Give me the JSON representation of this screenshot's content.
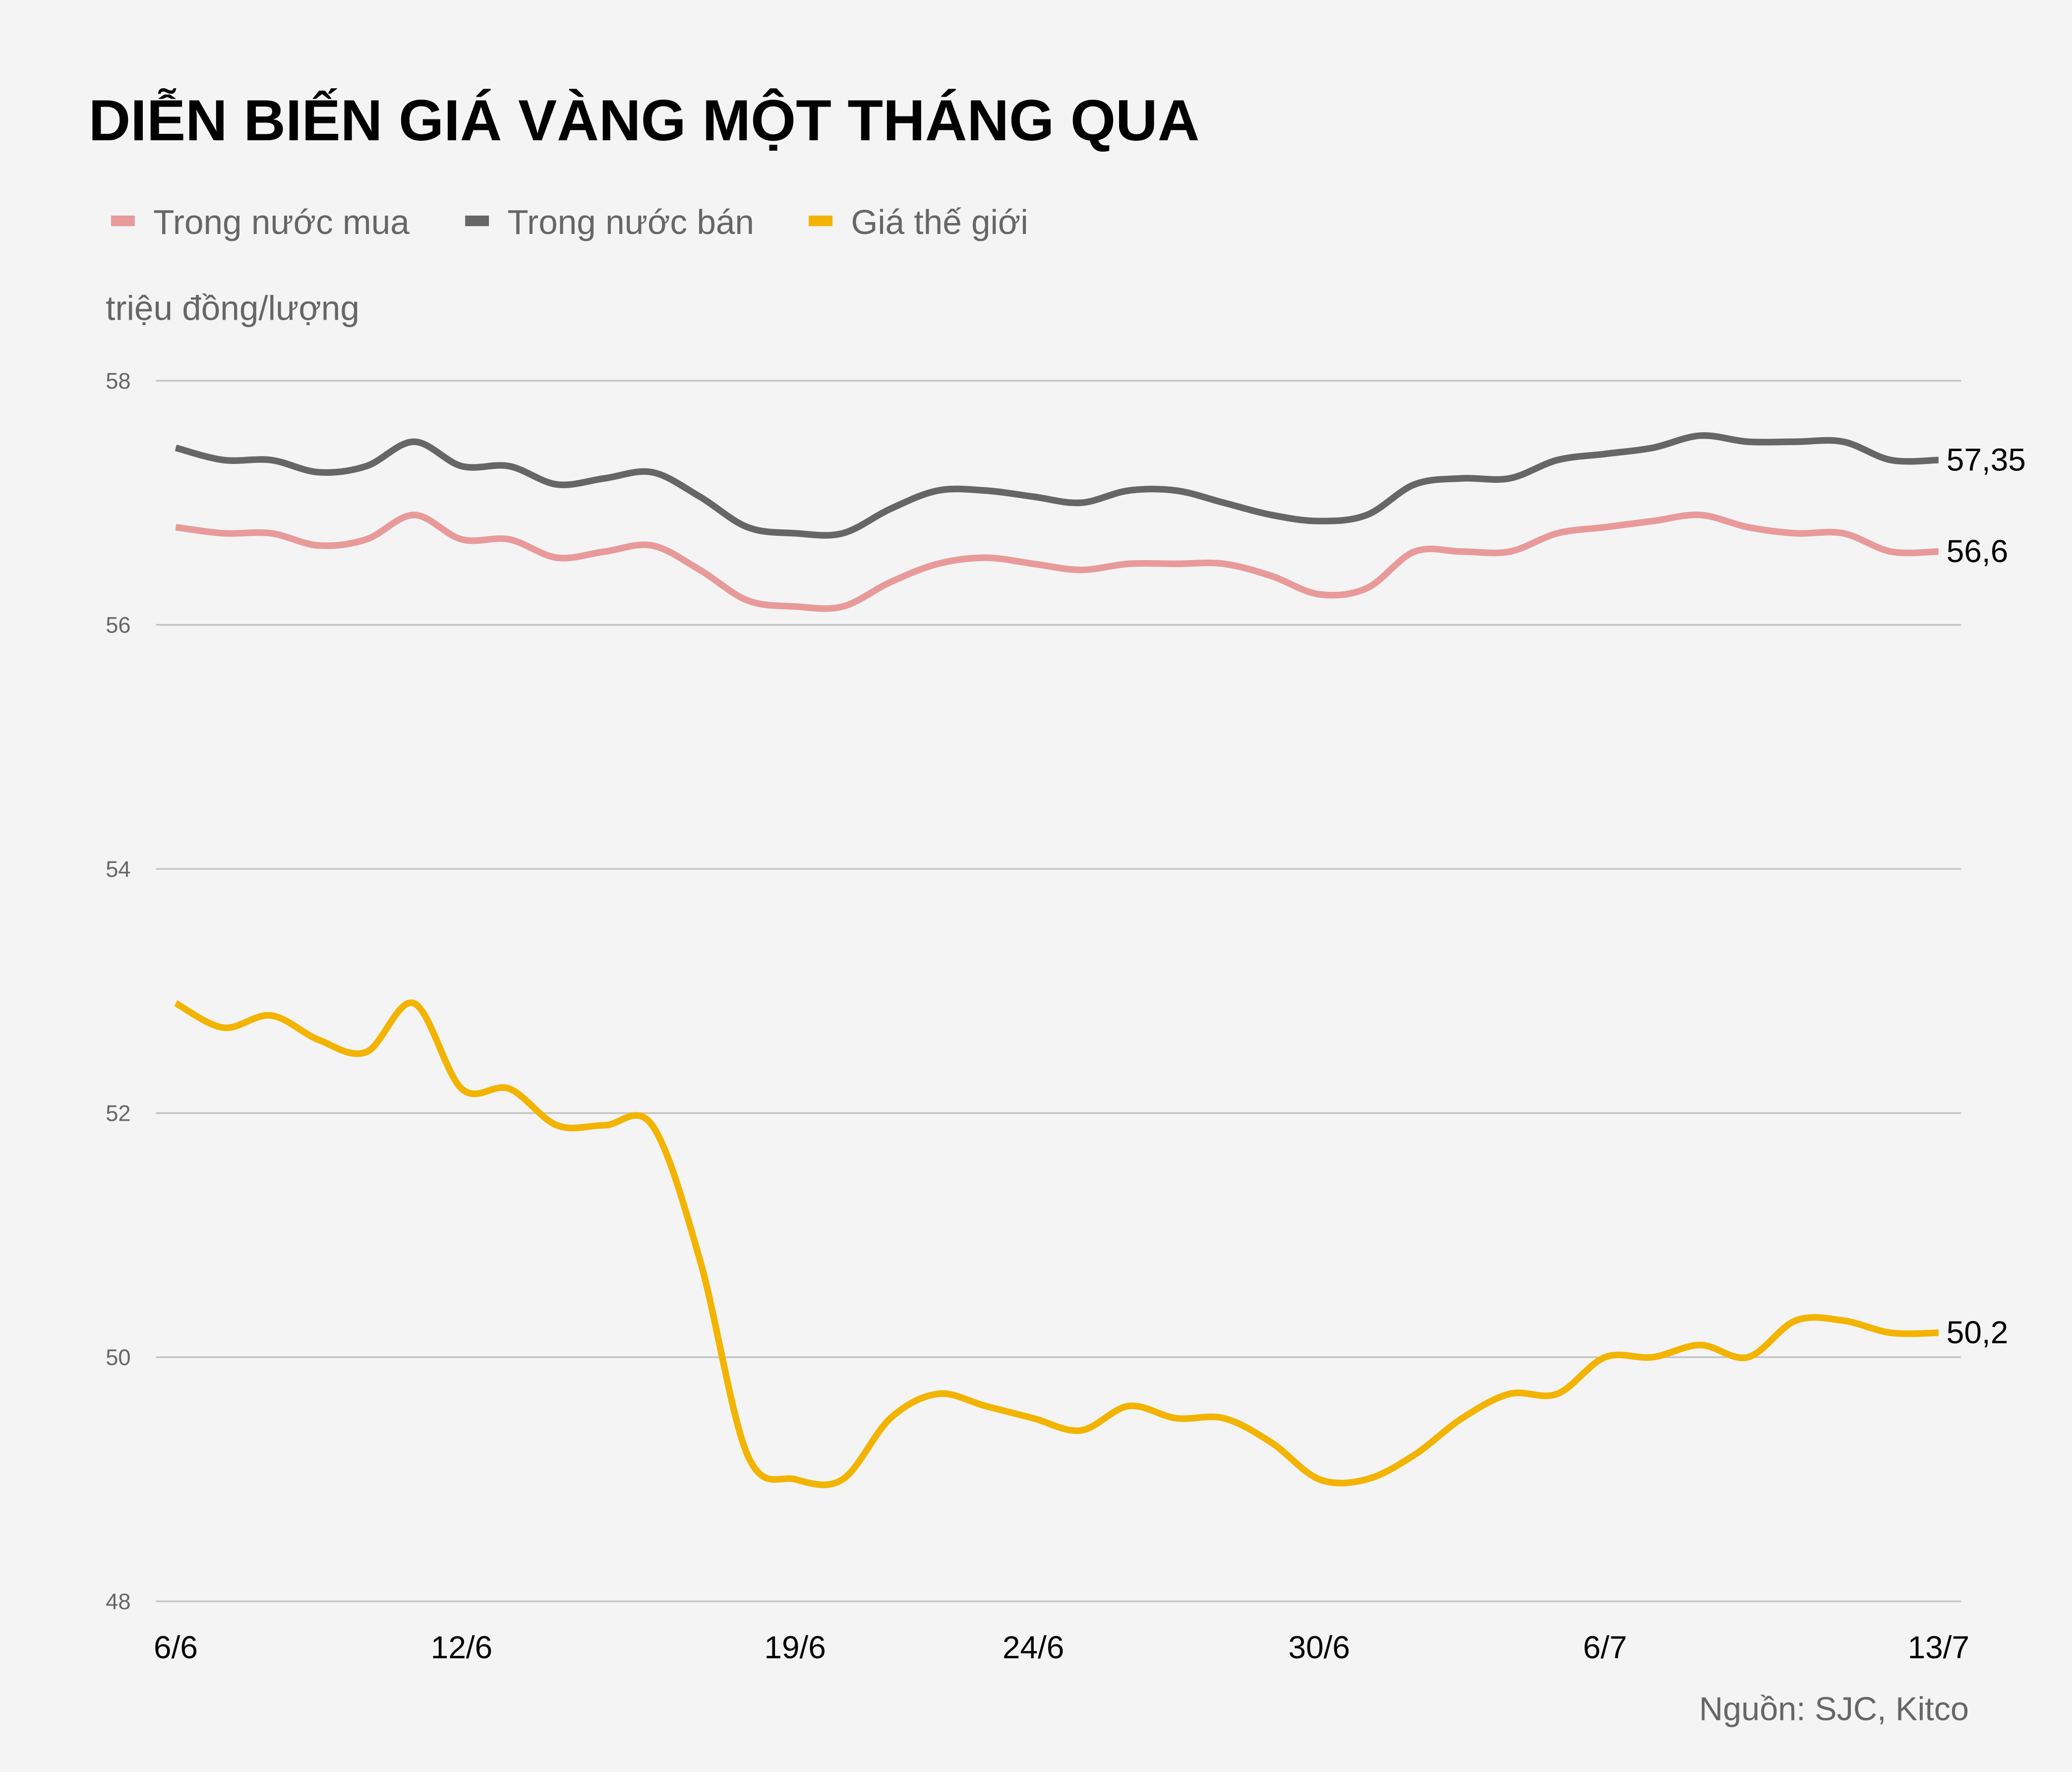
{
  "chart_data": {
    "type": "line",
    "title": "DIỄN BIẾN GIÁ VÀNG MỘT THÁNG QUA",
    "ylabel": "triệu đồng/lượng",
    "source": "Nguồn: SJC, Kitco",
    "ylim": [
      48,
      58
    ],
    "yticks": [
      "48",
      "50",
      "52",
      "54",
      "56",
      "58"
    ],
    "grid": true,
    "legend_position": "top-left",
    "x": [
      "6/6",
      "7/6",
      "8/6",
      "9/6",
      "10/6",
      "11/6",
      "12/6",
      "13/6",
      "14/6",
      "15/6",
      "16/6",
      "17/6",
      "18/6",
      "19/6",
      "20/6",
      "21/6",
      "22/6",
      "23/6",
      "24/6",
      "25/6",
      "26/6",
      "27/6",
      "28/6",
      "29/6",
      "30/6",
      "1/7",
      "2/7",
      "3/7",
      "4/7",
      "5/7",
      "6/7",
      "7/7",
      "8/7",
      "9/7",
      "10/7",
      "11/7",
      "12/7",
      "13/7"
    ],
    "xtick_labels": [
      "6/6",
      "12/6",
      "19/6",
      "24/6",
      "30/6",
      "6/7",
      "13/7"
    ],
    "series": [
      {
        "name": "Trong nước mua",
        "color": "#E89A9A",
        "end_label": "56,6",
        "values": [
          56.8,
          56.75,
          56.75,
          56.65,
          56.7,
          56.9,
          56.7,
          56.7,
          56.55,
          56.6,
          56.65,
          56.45,
          56.2,
          56.15,
          56.15,
          56.35,
          56.5,
          56.55,
          56.5,
          56.45,
          56.5,
          56.5,
          56.5,
          56.4,
          56.25,
          56.3,
          56.6,
          56.6,
          56.6,
          56.75,
          56.8,
          56.85,
          56.9,
          56.8,
          56.75,
          56.75,
          56.6,
          56.6
        ]
      },
      {
        "name": "Trong nước bán",
        "color": "#666666",
        "end_label": "57,35",
        "values": [
          57.45,
          57.35,
          57.35,
          57.25,
          57.3,
          57.5,
          57.3,
          57.3,
          57.15,
          57.2,
          57.25,
          57.05,
          56.8,
          56.75,
          56.75,
          56.95,
          57.1,
          57.1,
          57.05,
          57.0,
          57.1,
          57.1,
          57.0,
          56.9,
          56.85,
          56.9,
          57.15,
          57.2,
          57.2,
          57.35,
          57.4,
          57.45,
          57.55,
          57.5,
          57.5,
          57.5,
          57.35,
          57.35
        ]
      },
      {
        "name": "Giá thế giới",
        "color": "#F2B400",
        "end_label": "50,2",
        "values": [
          52.9,
          52.7,
          52.8,
          52.6,
          52.5,
          52.9,
          52.2,
          52.2,
          51.9,
          51.9,
          51.9,
          50.8,
          49.2,
          49.0,
          49.0,
          49.5,
          49.7,
          49.6,
          49.5,
          49.4,
          49.6,
          49.5,
          49.5,
          49.3,
          49.0,
          49.0,
          49.2,
          49.5,
          49.7,
          49.7,
          50.0,
          50.0,
          50.1,
          50.0,
          50.3,
          50.3,
          50.2,
          50.2
        ]
      }
    ]
  }
}
